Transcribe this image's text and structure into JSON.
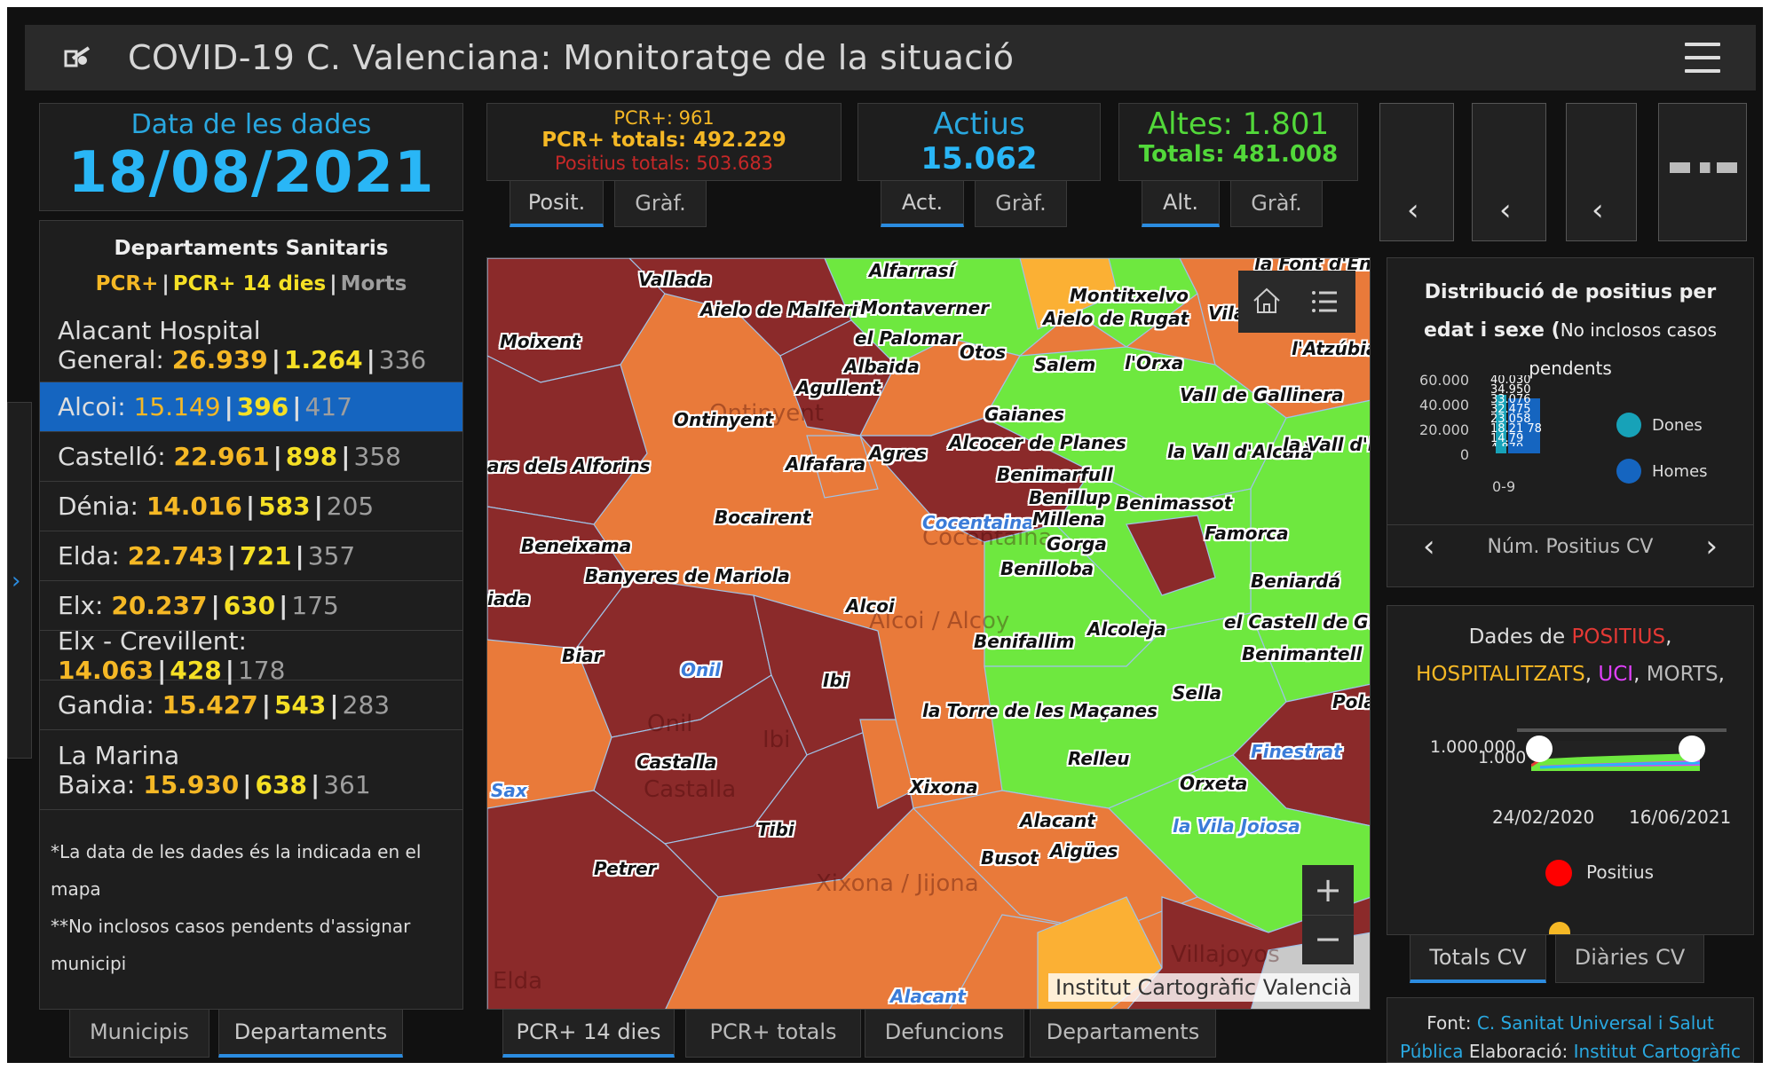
{
  "header": {
    "title": "COVID-19 C. Valenciana: Monitoratge de la situació"
  },
  "date": {
    "label": "Data de les dades",
    "value": "18/08/2021"
  },
  "pcr": {
    "line1": "PCR+: 961",
    "line2": "PCR+ totals: 492.229",
    "line3": "Positius totals: 503.683",
    "tabs": [
      "Posit.",
      "Gràf."
    ]
  },
  "actius": {
    "label": "Actius",
    "value": "15.062",
    "tabs": [
      "Act.",
      "Gràf."
    ]
  },
  "altes": {
    "label": "Altes: 1.801",
    "totals": "Totals: 481.008",
    "tabs": [
      "Alt.",
      "Gràf."
    ]
  },
  "departments": {
    "title": "Departaments Sanitaris",
    "legend": [
      "PCR+",
      "PCR+ 14 dies",
      "Morts"
    ],
    "rows": [
      {
        "name_line1": "Alacant Hospital",
        "name_line2": "General:",
        "pcr": "26.939",
        "pcr14": "1.264",
        "morts": "336"
      },
      {
        "name": "Alcoi:",
        "pcr": "15.149",
        "pcr14": "396",
        "morts": "417"
      },
      {
        "name": "Castelló:",
        "pcr": "22.961",
        "pcr14": "898",
        "morts": "358"
      },
      {
        "name": "Dénia:",
        "pcr": "14.016",
        "pcr14": "583",
        "morts": "205"
      },
      {
        "name": "Elda:",
        "pcr": "22.743",
        "pcr14": "721",
        "morts": "357"
      },
      {
        "name": "Elx:",
        "pcr": "20.237",
        "pcr14": "630",
        "morts": "175"
      },
      {
        "name": "Elx - Crevillent:",
        "pcr": "14.063",
        "pcr14": "428",
        "morts": "178"
      },
      {
        "name": "Gandia:",
        "pcr": "15.427",
        "pcr14": "543",
        "morts": "283"
      },
      {
        "name_line1": "La Marina",
        "name_line2": "Baixa:",
        "pcr": "15.930",
        "pcr14": "638",
        "morts": "361"
      }
    ],
    "note1": "*La data de les dades és la indicada en el mapa",
    "note2": "**No inclosos casos pendents d'assignar municipi"
  },
  "left_tabs": [
    "Municipis",
    "Departaments"
  ],
  "map_tabs": [
    "PCR+ 14 dies",
    "PCR+ totals",
    "Defuncions",
    "Departaments"
  ],
  "map": {
    "attribution": "Institut Cartogràfic Valencià",
    "labels": [
      "Vallada",
      "Alfarrasí",
      "Montitxelvo",
      "Aielo de Malferit",
      "Montaverner",
      "Aielo de Rugat",
      "Moixent",
      "el Palomar",
      "Otos",
      "l'Atzúbia",
      "Albaida",
      "Salem",
      "l'Orxa",
      "Agullent",
      "Vall de Gallinera",
      "Ontinyent",
      "Gaianes",
      "Alcocer de Planes",
      "la Vall d'Alcalà",
      "ars dels Alforins",
      "Alfafara",
      "Agres",
      "Benimarfull",
      "Benillup",
      "Benimassot",
      "Cocentaina",
      "Millena",
      "Bocairent",
      "Famorca",
      "Gorga",
      "Beneixama",
      "Benilloba",
      "Banyeres de Mariola",
      "Beniardá",
      "iada",
      "Alcoi",
      "Alcoleja",
      "el Castell de Gu",
      "Biar",
      "Benifallim",
      "Onil",
      "Ibi",
      "Benimantell",
      "Sella",
      "la Torre de les Maçanes",
      "Relleu",
      "Finestrat",
      "Castalla",
      "Xixona",
      "Orxeta",
      "Sax",
      "Alacant",
      "la Vila Joiosa",
      "Tibi",
      "Aigües",
      "Busot",
      "Petrer",
      "Alacant",
      "Pola",
      "Vila",
      "la Font d'En",
      "la Vall d'E"
    ],
    "bg_labels": [
      "Ontinyent",
      "Cocentaina",
      "Alcoi / Alcoy",
      "Castalla",
      "Xixona / Jijona",
      "Villajoyos",
      "Elda",
      "Onil",
      "Ibi"
    ]
  },
  "age_chart": {
    "title_bold": "Distribució de positius per edat i sexe (",
    "title_rest": "No inclosos casos pendents",
    "y_ticks": [
      "60.000",
      "40.000",
      "20.000",
      "0"
    ],
    "x_label": "0-9",
    "legend": [
      "Dones",
      "Homes"
    ],
    "nav_label": "Núm. Positius CV",
    "colors": {
      "dones": "#17a2b8",
      "homes": "#1565c0"
    }
  },
  "series_chart": {
    "title_prefix": "Dades de",
    "title_parts": [
      "POSITIUS",
      "HOSPITALITZATS",
      "UCI",
      "MORTS"
    ],
    "y_tick": "1.000.000",
    "y_tick2": "1.000",
    "dates": [
      "24/02/2020",
      "16/06/2021"
    ],
    "legend": [
      "Positius"
    ],
    "tabs": [
      "Totals CV",
      "Diàries CV"
    ],
    "colors": {
      "positius": "#e53935",
      "hosp": "#f5b825",
      "uci": "#e040fb",
      "morts": "#bbbbbb"
    }
  },
  "source": {
    "prefix": "Font:",
    "link1": "C. Sanitat Universal i Salut",
    "link1b": "Pública",
    "middle": "Elaboració:",
    "link2": "Institut Cartogràfic"
  }
}
